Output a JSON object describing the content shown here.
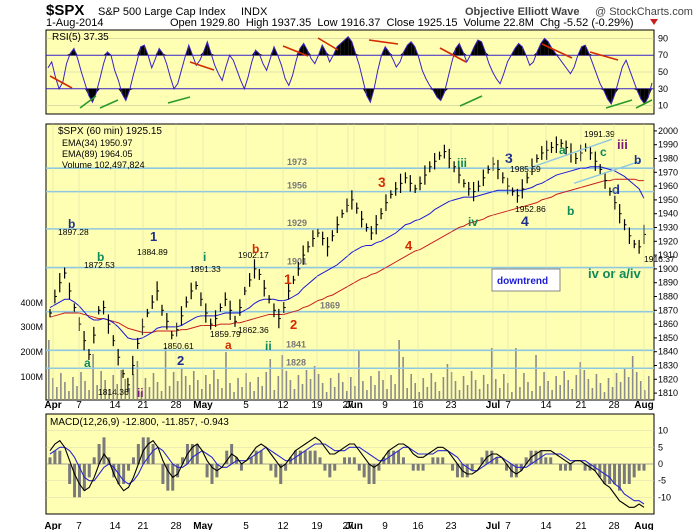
{
  "header": {
    "symbol": "$SPX",
    "name": "S&P 500 Large Cap Index",
    "exchange": "INDX",
    "watermark": "Objective Elliott Wave",
    "copyright": "@ StockCharts.com",
    "date": "1-Aug-2014",
    "quote": "Open 1929.80  High 1937.35  Low 1916.37  Close 1925.15  Volume 22.8M  Chg -5.52 (-0.29%)"
  },
  "colors": {
    "panel_bg": "#ffffb4",
    "rsi_line": "#3a22c8",
    "price_bar": "#000000",
    "ema34": "#1a1ad8",
    "ema89": "#c81e1e",
    "level_line": "#8ec8e0",
    "macd_line": "#000000",
    "signal_line": "#2a2ad0",
    "hist": "#7a7a7a",
    "volume": "#8c8c8c",
    "wave_dark_blue": "#1c2f8a",
    "wave_green": "#0e8a5a",
    "wave_red": "#d42a00",
    "wave_purple": "#7a1a7a"
  },
  "rsi_panel": {
    "label": "RSI(5) 37.35",
    "ticks": [
      "90",
      "70",
      "50",
      "30",
      "10"
    ],
    "overbought": 70,
    "oversold": 30,
    "series": [
      55,
      62,
      44,
      30,
      38,
      60,
      72,
      78,
      66,
      50,
      36,
      22,
      14,
      25,
      42,
      60,
      74,
      70,
      52,
      40,
      24,
      16,
      28,
      46,
      62,
      80,
      82,
      70,
      55,
      66,
      78,
      72,
      60,
      44,
      30,
      36,
      52,
      68,
      82,
      70,
      58,
      64,
      74,
      86,
      72,
      58,
      48,
      40,
      56,
      70,
      64,
      52,
      40,
      30,
      44,
      62,
      76,
      72,
      60,
      52,
      66,
      80,
      70,
      58,
      42,
      34,
      46,
      64,
      78,
      84,
      76,
      66,
      60,
      70,
      82,
      74,
      62,
      70,
      80,
      84,
      88,
      92,
      86,
      72,
      58,
      40,
      22,
      14,
      30,
      52,
      70,
      80,
      74,
      66,
      56,
      62,
      74,
      82,
      86,
      80,
      68,
      52,
      42,
      34,
      28,
      20,
      16,
      26,
      44,
      62,
      78,
      84,
      74,
      62,
      70,
      80,
      88,
      86,
      74,
      60,
      50,
      42,
      36,
      48,
      62,
      70,
      78,
      84,
      80,
      70,
      58,
      62,
      74,
      84,
      90,
      86,
      78,
      72,
      66,
      60,
      54,
      48,
      56,
      70,
      80,
      82,
      72,
      60,
      48,
      36,
      28,
      18,
      12,
      24,
      40,
      56,
      64,
      52,
      40,
      28,
      18,
      12,
      20,
      37
    ]
  },
  "price_panel": {
    "label": "$SPX (60 min) 1925.15",
    "legend": [
      {
        "text": "EMA(34) 1950.97",
        "color": "#1a1ad8"
      },
      {
        "text": "EMA(89) 1964.05",
        "color": "#c81e1e"
      },
      {
        "text": "Volume 102,497,824",
        "color": "#8ec8e0"
      }
    ],
    "y_ticks": [
      "2000",
      "1990",
      "1980",
      "1970",
      "1960",
      "1950",
      "1940",
      "1930",
      "1920",
      "1910",
      "1900",
      "1890",
      "1880",
      "1870",
      "1860",
      "1850",
      "1840",
      "1830",
      "1820",
      "1810"
    ],
    "volume_ticks": [
      "400M",
      "300M",
      "200M",
      "100M"
    ],
    "levels": [
      {
        "value": 1973,
        "label": "1973"
      },
      {
        "value": 1956,
        "label": "1956"
      },
      {
        "value": 1929,
        "label": "1929"
      },
      {
        "value": 1901,
        "label": "1901"
      },
      {
        "value": 1869,
        "label": "1869"
      },
      {
        "value": 1841,
        "label": "1841"
      },
      {
        "value": 1828,
        "label": "1828"
      }
    ],
    "price_labels": [
      "1897.28",
      "1872.53",
      "1884.89",
      "1850.61",
      "1814.36",
      "1891.33",
      "1859.79",
      "1902.17",
      "1862.36",
      "1985.59",
      "1952.86",
      "1991.39",
      "1916.37"
    ],
    "wave_labels": [
      "b",
      "b",
      "a",
      "ii",
      "1",
      "2",
      "i",
      "a",
      "b",
      "ii",
      "1",
      "2",
      "3",
      "4",
      "iii",
      "iv",
      "3",
      "4",
      "a",
      "b",
      "c",
      "iii",
      "d",
      "b",
      "iv or a/iv"
    ],
    "annotation": "downtrend",
    "close_series": [
      1868,
      1880,
      1890,
      1897,
      1884,
      1872,
      1860,
      1848,
      1838,
      1852,
      1870,
      1872,
      1860,
      1848,
      1836,
      1824,
      1816,
      1830,
      1846,
      1858,
      1868,
      1876,
      1884,
      1870,
      1862,
      1852,
      1856,
      1866,
      1876,
      1884,
      1888,
      1878,
      1868,
      1860,
      1864,
      1872,
      1878,
      1870,
      1862,
      1872,
      1884,
      1892,
      1900,
      1896,
      1886,
      1878,
      1870,
      1864,
      1872,
      1884,
      1892,
      1900,
      1910,
      1916,
      1922,
      1926,
      1922,
      1916,
      1924,
      1932,
      1940,
      1946,
      1950,
      1944,
      1936,
      1930,
      1926,
      1932,
      1940,
      1948,
      1954,
      1958,
      1962,
      1966,
      1962,
      1958,
      1962,
      1968,
      1974,
      1978,
      1982,
      1985,
      1980,
      1974,
      1968,
      1962,
      1958,
      1956,
      1960,
      1966,
      1972,
      1976,
      1972,
      1966,
      1960,
      1956,
      1953,
      1958,
      1966,
      1974,
      1980,
      1984,
      1986,
      1988,
      1990,
      1991,
      1988,
      1984,
      1980,
      1984,
      1988,
      1984,
      1978,
      1972,
      1964,
      1956,
      1948,
      1940,
      1932,
      1924,
      1918,
      1916,
      1925
    ],
    "ema34_series": [
      1872,
      1874,
      1876,
      1878,
      1878,
      1876,
      1873,
      1869,
      1865,
      1863,
      1863,
      1864,
      1863,
      1861,
      1858,
      1854,
      1850,
      1849,
      1849,
      1850,
      1852,
      1854,
      1857,
      1858,
      1858,
      1858,
      1858,
      1859,
      1861,
      1863,
      1865,
      1866,
      1866,
      1866,
      1866,
      1867,
      1868,
      1868,
      1868,
      1868,
      1870,
      1872,
      1875,
      1877,
      1878,
      1878,
      1878,
      1877,
      1877,
      1878,
      1880,
      1882,
      1886,
      1889,
      1892,
      1895,
      1897,
      1899,
      1901,
      1903,
      1906,
      1909,
      1912,
      1914,
      1916,
      1917,
      1917,
      1919,
      1920,
      1922,
      1924,
      1926,
      1929,
      1932,
      1933,
      1935,
      1936,
      1938,
      1940,
      1943,
      1945,
      1947,
      1949,
      1950,
      1951,
      1952,
      1952,
      1952,
      1953,
      1954,
      1955,
      1956,
      1957,
      1957,
      1957,
      1957,
      1957,
      1957,
      1958,
      1959,
      1961,
      1962,
      1964,
      1966,
      1968,
      1969,
      1970,
      1971,
      1972,
      1973,
      1973,
      1974,
      1974,
      1974,
      1973,
      1972,
      1971,
      1969,
      1967,
      1964,
      1961,
      1958,
      1951
    ],
    "ema89_series": [
      1865,
      1866,
      1867,
      1868,
      1868,
      1868,
      1868,
      1867,
      1866,
      1865,
      1864,
      1864,
      1863,
      1862,
      1861,
      1859,
      1857,
      1856,
      1855,
      1854,
      1854,
      1854,
      1855,
      1855,
      1855,
      1855,
      1855,
      1856,
      1856,
      1857,
      1858,
      1859,
      1859,
      1859,
      1859,
      1860,
      1860,
      1860,
      1861,
      1861,
      1862,
      1863,
      1864,
      1865,
      1866,
      1867,
      1867,
      1867,
      1867,
      1868,
      1869,
      1870,
      1872,
      1873,
      1875,
      1877,
      1878,
      1880,
      1881,
      1883,
      1885,
      1887,
      1889,
      1891,
      1893,
      1894,
      1896,
      1897,
      1899,
      1901,
      1903,
      1905,
      1907,
      1909,
      1911,
      1913,
      1914,
      1916,
      1918,
      1920,
      1922,
      1924,
      1926,
      1928,
      1930,
      1931,
      1933,
      1934,
      1935,
      1936,
      1938,
      1939,
      1940,
      1941,
      1942,
      1943,
      1944,
      1945,
      1946,
      1947,
      1948,
      1950,
      1951,
      1952,
      1954,
      1955,
      1956,
      1957,
      1958,
      1959,
      1960,
      1961,
      1962,
      1963,
      1964,
      1964,
      1965,
      1965,
      1965,
      1965,
      1965,
      1964,
      1964
    ]
  },
  "macd_panel": {
    "label": "MACD(12,26,9) -12.800, -11.857, -0.943",
    "ticks": [
      "10",
      "5",
      "0",
      "-5",
      "-10"
    ],
    "macd_series": [
      4,
      6,
      7,
      5,
      1,
      -3,
      -6,
      -8,
      -7,
      -4,
      0,
      3,
      1,
      -3,
      -6,
      -8,
      -7,
      -4,
      0,
      4,
      6,
      7,
      5,
      1,
      -2,
      -4,
      -3,
      0,
      3,
      5,
      6,
      4,
      1,
      -1,
      -2,
      -1,
      1,
      3,
      2,
      0,
      1,
      3,
      5,
      6,
      5,
      3,
      1,
      -1,
      0,
      2,
      4,
      5,
      6,
      7,
      8,
      7,
      5,
      3,
      3,
      4,
      5,
      6,
      6,
      4,
      2,
      0,
      -1,
      0,
      2,
      4,
      5,
      6,
      6,
      5,
      3,
      2,
      2,
      3,
      4,
      5,
      5,
      4,
      2,
      0,
      -2,
      -3,
      -3,
      -2,
      0,
      2,
      3,
      3,
      2,
      0,
      -2,
      -3,
      -2,
      0,
      2,
      3,
      4,
      4,
      4,
      3,
      2,
      1,
      0,
      1,
      1,
      0,
      -1,
      -2,
      -4,
      -6,
      -7,
      -9,
      -11,
      -12,
      -13,
      -13,
      -12,
      -13
    ],
    "signal_series": [
      3,
      4,
      5,
      5,
      4,
      2,
      -1,
      -4,
      -5,
      -5,
      -3,
      -1,
      0,
      -1,
      -3,
      -5,
      -6,
      -5,
      -3,
      0,
      2,
      4,
      5,
      4,
      2,
      0,
      -1,
      -1,
      0,
      2,
      3,
      4,
      3,
      2,
      0,
      -1,
      -1,
      0,
      1,
      1,
      1,
      2,
      3,
      4,
      5,
      4,
      3,
      2,
      1,
      1,
      2,
      3,
      4,
      5,
      6,
      6,
      6,
      5,
      4,
      4,
      4,
      5,
      5,
      5,
      4,
      3,
      2,
      1,
      1,
      2,
      3,
      4,
      5,
      5,
      4,
      3,
      3,
      3,
      3,
      4,
      4,
      4,
      3,
      2,
      0,
      -1,
      -2,
      -2,
      -1,
      0,
      1,
      2,
      2,
      1,
      0,
      -1,
      -1,
      -1,
      0,
      1,
      2,
      3,
      3,
      3,
      3,
      2,
      1,
      1,
      1,
      1,
      0,
      -1,
      -2,
      -3,
      -4,
      -6,
      -7,
      -9,
      -10,
      -11,
      -11,
      -12
    ]
  },
  "x_axis": {
    "ticks": [
      "Apr",
      "7",
      "14",
      "21",
      "28",
      "May",
      "5",
      "12",
      "19",
      "27",
      "Jun",
      "9",
      "16",
      "23",
      "Jul",
      "7",
      "14",
      "21",
      "28",
      "Aug"
    ]
  },
  "chart_data": {
    "type": "line",
    "title": "$SPX S&P 500 Large Cap Index INDX",
    "xlabel": "",
    "ylabel": "",
    "ylim": [
      1810,
      2000
    ],
    "x": [
      "Apr",
      "7",
      "14",
      "21",
      "28",
      "May",
      "5",
      "12",
      "19",
      "27",
      "Jun",
      "9",
      "16",
      "23",
      "Jul",
      "7",
      "14",
      "21",
      "28",
      "Aug"
    ],
    "series": [
      {
        "name": "$SPX (60 min) 1925.15",
        "values": [
          1868,
          1897,
          1872,
          1814,
          1885,
          1851,
          1891,
          1860,
          1902,
          1862,
          1901,
          1930,
          1960,
          1947,
          1930,
          1962,
          1986,
          1953,
          1991,
          1916
        ]
      },
      {
        "name": "EMA(34) 1950.97",
        "values": [
          1872,
          1878,
          1869,
          1850,
          1860,
          1866,
          1866,
          1868,
          1877,
          1886,
          1897,
          1912,
          1926,
          1945,
          1952,
          1956,
          1960,
          1970,
          1974,
          1951
        ]
      },
      {
        "name": "EMA(89) 1964.05",
        "values": [
          1865,
          1868,
          1867,
          1857,
          1855,
          1858,
          1859,
          1861,
          1866,
          1870,
          1880,
          1891,
          1905,
          1920,
          1934,
          1941,
          1948,
          1957,
          1963,
          1964
        ]
      }
    ],
    "annotations": [
      "1973",
      "1956",
      "1929",
      "1901",
      "1869",
      "1841",
      "1828",
      "downtrend",
      "iv or a/iv"
    ]
  }
}
